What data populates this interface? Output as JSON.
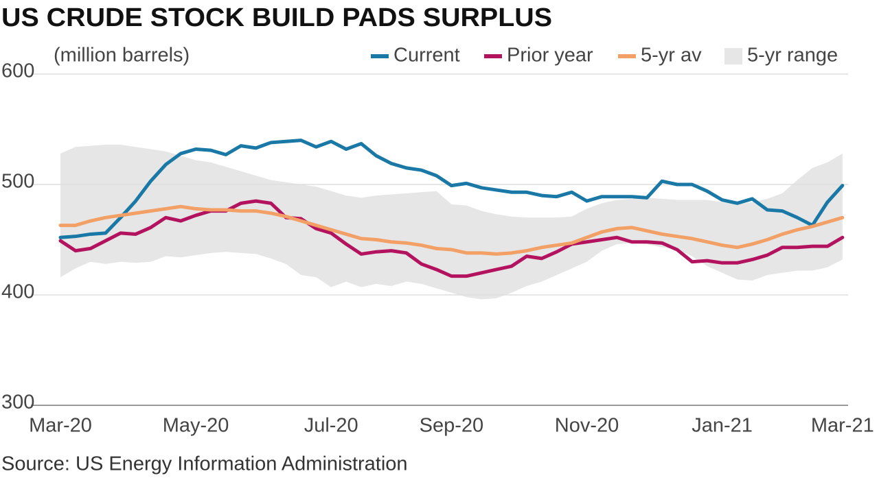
{
  "chart_data": {
    "type": "line",
    "title": "US CRUDE STOCK BUILD PADS SURPLUS",
    "y_label": "(million barrels)",
    "source": "Source: US Energy Information Administration",
    "categories": [
      "Mar-20",
      null,
      null,
      null,
      null,
      null,
      null,
      null,
      null,
      "May-20",
      null,
      null,
      null,
      null,
      null,
      null,
      null,
      null,
      "Jul-20",
      null,
      null,
      null,
      null,
      null,
      null,
      null,
      "Sep-20",
      null,
      null,
      null,
      null,
      null,
      null,
      null,
      null,
      "Nov-20",
      null,
      null,
      null,
      null,
      null,
      null,
      null,
      null,
      "Jan-21",
      null,
      null,
      null,
      null,
      null,
      null,
      null,
      "Mar-21"
    ],
    "ylim": [
      300,
      600
    ],
    "yticks": [
      300,
      400,
      500,
      600
    ],
    "grid": true,
    "series": [
      {
        "name": "Current",
        "color": "#1a78a6",
        "values": [
          452,
          453,
          455,
          456,
          470,
          485,
          503,
          518,
          528,
          532,
          531,
          527,
          535,
          533,
          538,
          539,
          540,
          534,
          539,
          532,
          537,
          526,
          519,
          515,
          513,
          508,
          499,
          501,
          497,
          495,
          493,
          493,
          490,
          489,
          493,
          485,
          489,
          489,
          489,
          488,
          503,
          500,
          500,
          494,
          486,
          483,
          487,
          477,
          476,
          470,
          463,
          484,
          499
        ]
      },
      {
        "name": "Prior year",
        "color": "#b3135e",
        "values": [
          449,
          440,
          442,
          449,
          456,
          455,
          461,
          470,
          467,
          472,
          476,
          476,
          483,
          485,
          483,
          470,
          469,
          460,
          456,
          446,
          437,
          439,
          440,
          438,
          428,
          423,
          417,
          417,
          420,
          423,
          426,
          435,
          433,
          439,
          446,
          448,
          450,
          452,
          448,
          448,
          447,
          441,
          430,
          431,
          429,
          429,
          432,
          436,
          443,
          443,
          444,
          444,
          452
        ]
      },
      {
        "name": "5-yr av",
        "color": "#f2a065",
        "values": [
          463,
          463,
          467,
          470,
          472,
          474,
          476,
          478,
          480,
          478,
          477,
          477,
          476,
          476,
          474,
          471,
          467,
          463,
          459,
          455,
          451,
          450,
          448,
          447,
          445,
          442,
          441,
          438,
          438,
          437,
          438,
          440,
          443,
          445,
          447,
          452,
          457,
          460,
          461,
          458,
          455,
          453,
          451,
          448,
          445,
          443,
          446,
          450,
          455,
          459,
          462,
          466,
          470
        ]
      },
      {
        "name": "5-yr range",
        "color": "#e6e6e6",
        "upper": [
          528,
          534,
          535,
          536,
          536,
          534,
          532,
          530,
          526,
          522,
          520,
          516,
          512,
          508,
          504,
          502,
          500,
          498,
          494,
          490,
          488,
          490,
          491,
          492,
          493,
          494,
          482,
          481,
          476,
          473,
          471,
          470,
          470,
          470,
          471,
          478,
          483,
          486,
          487,
          488,
          487,
          486,
          486,
          486,
          484,
          482,
          484,
          487,
          492,
          504,
          515,
          520,
          528
        ],
        "lower": [
          416,
          424,
          430,
          428,
          430,
          429,
          430,
          435,
          434,
          436,
          438,
          439,
          438,
          437,
          433,
          428,
          418,
          416,
          407,
          412,
          407,
          410,
          408,
          412,
          410,
          406,
          402,
          398,
          396,
          397,
          402,
          408,
          412,
          418,
          424,
          430,
          440,
          446,
          447,
          446,
          443,
          441,
          435,
          426,
          420,
          414,
          413,
          418,
          420,
          422,
          422,
          425,
          432
        ]
      }
    ]
  }
}
